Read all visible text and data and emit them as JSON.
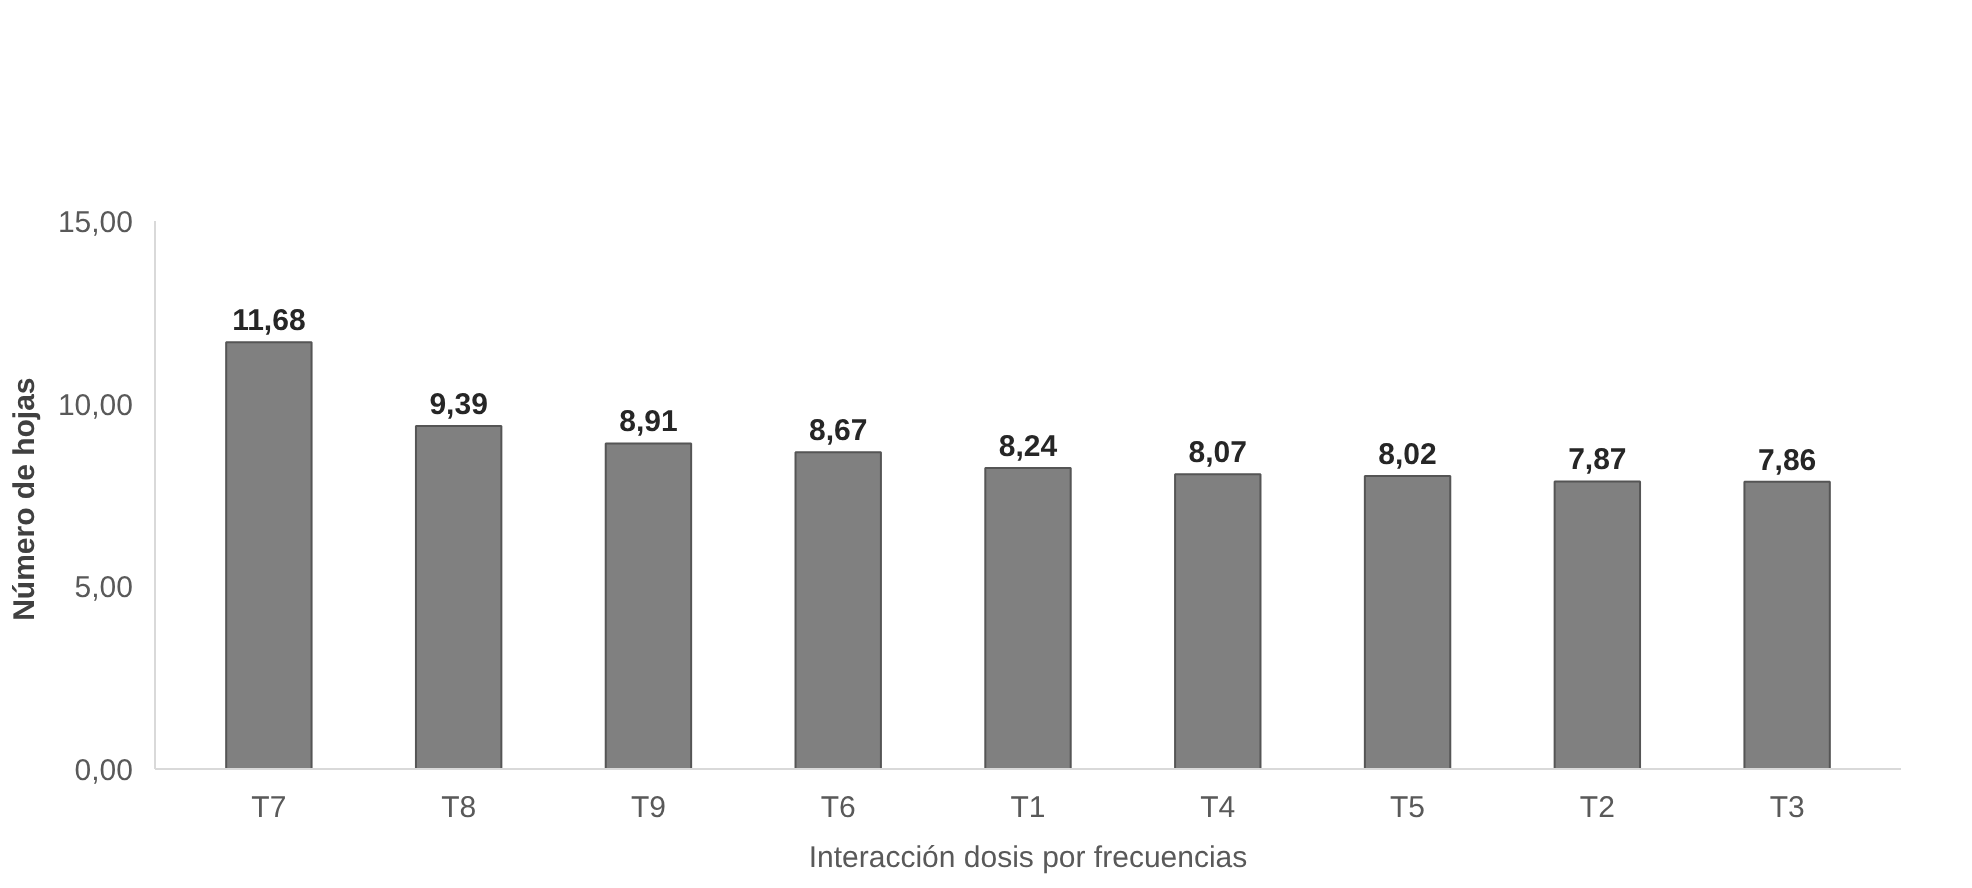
{
  "chart_data": {
    "type": "bar",
    "xlabel": "Interacción dosis por frecuencias",
    "ylabel": "Número de  hojas",
    "categories": [
      "T7",
      "T8",
      "T9",
      "T6",
      "T1",
      "T4",
      "T5",
      "T2",
      "T3"
    ],
    "values": [
      11.68,
      9.39,
      8.91,
      8.67,
      8.24,
      8.07,
      8.02,
      7.87,
      7.86
    ],
    "value_labels": [
      "11,68",
      "9,39",
      "8,91",
      "8,67",
      "8,24",
      "8,07",
      "8,02",
      "7,87",
      "7,86"
    ],
    "color": "#808080",
    "ylim": [
      0,
      15
    ],
    "yticks": [
      {
        "value": 0,
        "label": "0,00"
      },
      {
        "value": 5,
        "label": "5,00"
      },
      {
        "value": 10,
        "label": "10,00"
      },
      {
        "value": 15,
        "label": "15,00"
      }
    ],
    "grid": false
  }
}
